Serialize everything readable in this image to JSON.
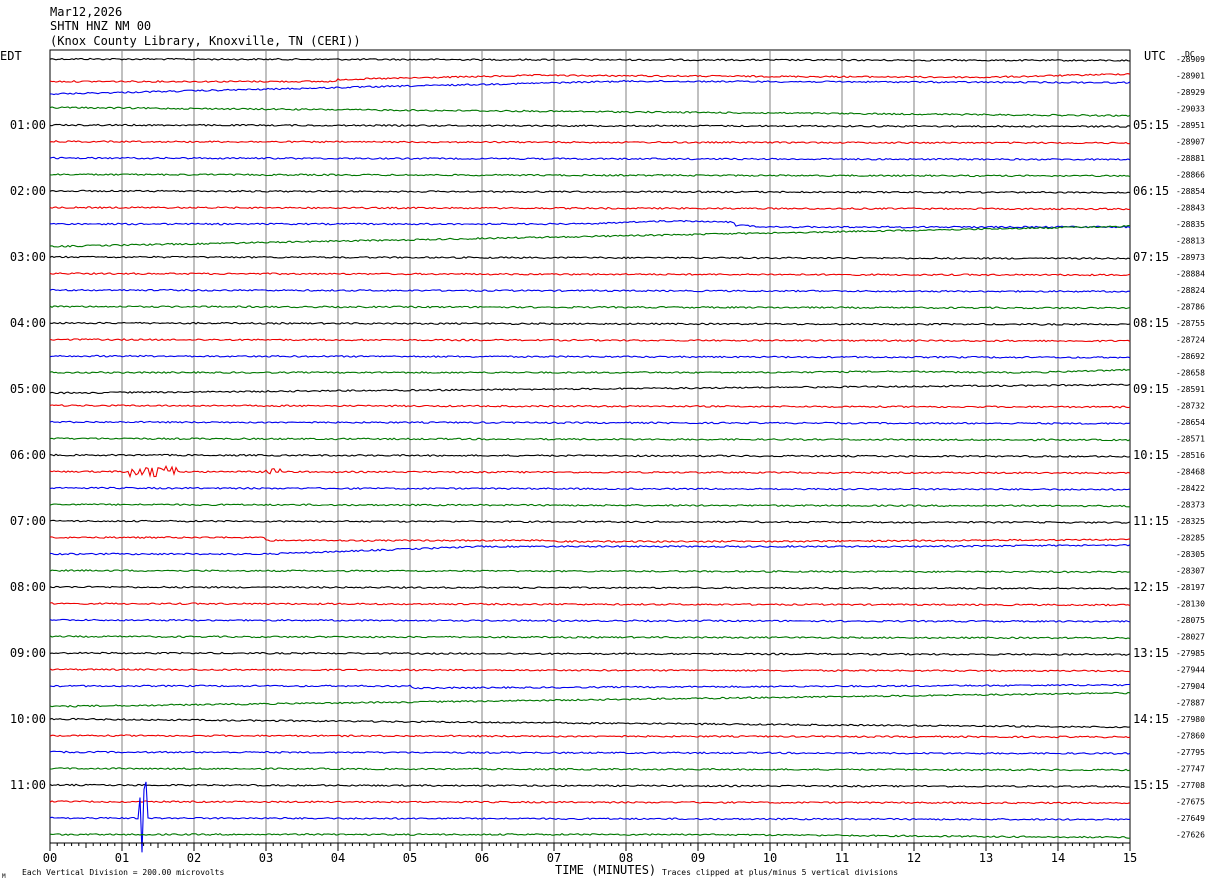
{
  "header": {
    "date": "Mar12,2026",
    "station": "SHTN HNZ NM 00",
    "location": "(Knox County Library, Knoxville, TN (CERI))"
  },
  "labels": {
    "left_tz": "EDT",
    "right_tz": "UTC",
    "dc": "DC",
    "xlabel": "TIME (MINUTES)",
    "scale_note": "Each Vertical Division = 200.00 microvolts",
    "clip_note": "Traces clipped at plus/minus 5 vertical divisions",
    "corner_mark": "M"
  },
  "colors": {
    "trace_cycle": [
      "#000000",
      "#ee0000",
      "#0000ee",
      "#007700"
    ],
    "grid": "#808080",
    "text": "#000000"
  },
  "chart_data": {
    "type": "line",
    "title": "SHTN HNZ NM 00",
    "xlabel": "TIME (MINUTES)",
    "xlim": [
      0,
      15
    ],
    "x_ticks": [
      "00",
      "01",
      "02",
      "03",
      "04",
      "05",
      "06",
      "07",
      "08",
      "09",
      "10",
      "11",
      "12",
      "13",
      "14",
      "15"
    ],
    "row_count": 48,
    "left_hour_labels": [
      "01:00",
      "02:00",
      "03:00",
      "04:00",
      "05:00",
      "06:00",
      "07:00",
      "08:00",
      "09:00",
      "10:00",
      "11:00"
    ],
    "right_hour_labels": [
      "05:15",
      "06:15",
      "07:15",
      "08:15",
      "09:15",
      "10:15",
      "11:15",
      "12:15",
      "13:15",
      "14:15",
      "15:15"
    ],
    "dc_offsets": [
      "-28909",
      "-28901",
      "-28929",
      "-29033",
      "-28951",
      "-28907",
      "-28881",
      "-28866",
      "-28854",
      "-28843",
      "-28835",
      "-28813",
      "-28973",
      "-28884",
      "-28824",
      "-28786",
      "-28755",
      "-28724",
      "-28692",
      "-28658",
      "-28591",
      "-28732",
      "-28654",
      "-28571",
      "-28516",
      "-28468",
      "-28422",
      "-28373",
      "-28325",
      "-28285",
      "-28305",
      "-28307",
      "-28197",
      "-28130",
      "-28075",
      "-28027",
      "-27985",
      "-27944",
      "-27904",
      "-27887",
      "-27980",
      "-27860",
      "-27795",
      "-27747",
      "-27708",
      "-27675",
      "-27649",
      "-27626"
    ],
    "events": [
      {
        "row": 25,
        "minute_start": 1.1,
        "minute_end": 1.75,
        "amplitude": "moderate"
      },
      {
        "row": 25,
        "minute_start": 3.0,
        "minute_end": 3.2,
        "amplitude": "small"
      },
      {
        "row": 46,
        "minute_start": 1.25,
        "minute_end": 1.35,
        "amplitude": "clipped"
      }
    ]
  }
}
